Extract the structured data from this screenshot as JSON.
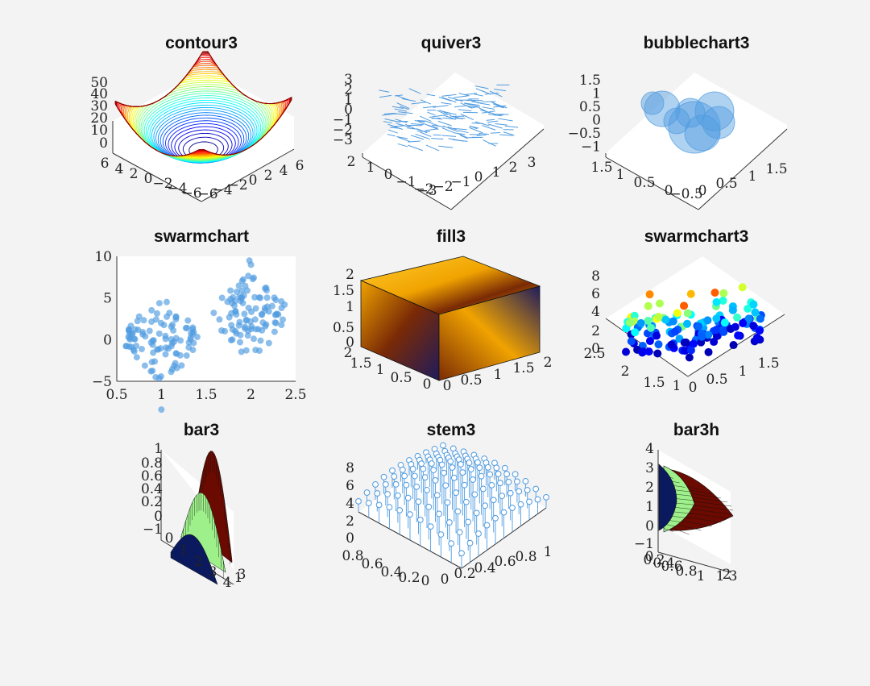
{
  "figure": {
    "background": "#f3f3f3",
    "panels": [
      {
        "id": "contour3",
        "title": "contour3"
      },
      {
        "id": "quiver3",
        "title": "quiver3"
      },
      {
        "id": "bubblechart3",
        "title": "bubblechart3"
      },
      {
        "id": "swarmchart",
        "title": "swarmchart"
      },
      {
        "id": "fill3",
        "title": "fill3"
      },
      {
        "id": "swarmchart3",
        "title": "swarmchart3"
      },
      {
        "id": "bar3",
        "title": "bar3"
      },
      {
        "id": "stem3",
        "title": "stem3"
      },
      {
        "id": "bar3h",
        "title": "bar3h"
      }
    ]
  },
  "chart_data": [
    {
      "type": "contour3",
      "title": "contour3",
      "function": "z = x^2 + y^2",
      "xlim": [
        -6,
        6
      ],
      "ylim": [
        -6,
        6
      ],
      "zlim": [
        0,
        50
      ],
      "xticks": [
        "−6",
        "−4",
        "−2",
        "0",
        "2",
        "4",
        "6"
      ],
      "yticks": [
        "6",
        "4",
        "2",
        "0",
        "−2",
        "−4",
        "−6"
      ],
      "zticks": [
        "50",
        "40",
        "30",
        "20",
        "10",
        "0"
      ],
      "colormap": "jet",
      "levels": 40
    },
    {
      "type": "quiver3",
      "title": "quiver3",
      "xlim": [
        -3,
        3
      ],
      "ylim": [
        -2,
        2
      ],
      "zlim": [
        -3,
        3
      ],
      "xticks": [
        "−3",
        "−2",
        "−1",
        "0",
        "1",
        "2",
        "3"
      ],
      "yticks": [
        "2",
        "1",
        "0",
        "−1",
        "−2"
      ],
      "zticks": [
        "3",
        "2",
        "1",
        "0",
        "−1",
        "−2",
        "−3"
      ],
      "color": "#4f9be0"
    },
    {
      "type": "bubblechart3",
      "title": "bubblechart3",
      "xlim": [
        -0.5,
        1.5
      ],
      "ylim": [
        -0.5,
        1.5
      ],
      "zlim": [
        -1,
        1.5
      ],
      "xticks": [
        "0",
        "0.5",
        "1",
        "1.5"
      ],
      "yticks": [
        "1.5",
        "1",
        "0.5",
        "0",
        "−0.5"
      ],
      "zticks": [
        "1.5",
        "1",
        "0.5",
        "0",
        "−0.5",
        "−1"
      ],
      "color": "#4f9be0",
      "bubbles": [
        [
          0.2,
          0.8,
          0.6,
          0.9
        ],
        [
          0.6,
          0.5,
          0.3,
          1.4
        ],
        [
          0.9,
          0.2,
          0.7,
          1.2
        ],
        [
          0.4,
          0.6,
          0.1,
          1.0
        ],
        [
          0.75,
          0.35,
          0.2,
          0.8
        ],
        [
          0.55,
          0.7,
          0.45,
          0.7
        ],
        [
          0.85,
          0.45,
          0.5,
          0.6
        ],
        [
          0.3,
          0.3,
          0.15,
          0.75
        ]
      ]
    },
    {
      "type": "scatter",
      "title": "swarmchart",
      "xlim": [
        0.5,
        2.5
      ],
      "ylim": [
        -5,
        10
      ],
      "xticks": [
        "0.5",
        "1",
        "1.5",
        "2",
        "2.5"
      ],
      "yticks": [
        "10",
        "5",
        "0",
        "−5"
      ],
      "color": "#4f9be0",
      "groups": [
        {
          "x": 1,
          "mean": 0,
          "sd": 2,
          "n": 100
        },
        {
          "x": 2,
          "mean": 3,
          "sd": 2,
          "n": 100
        }
      ]
    },
    {
      "type": "fill3",
      "title": "fill3",
      "xlim": [
        0,
        2
      ],
      "ylim": [
        0,
        2
      ],
      "zlim": [
        0,
        2
      ],
      "xticks": [
        "0",
        "0.5",
        "1",
        "1.5",
        "2"
      ],
      "yticks": [
        "2",
        "1.5",
        "1",
        "0.5",
        "0"
      ],
      "zticks": [
        "2",
        "1.5",
        "1",
        "0.5",
        "0"
      ],
      "colors": [
        "#1e1b5c",
        "#7a2a05",
        "#f0a300",
        "#ffcd30"
      ]
    },
    {
      "type": "scatter3",
      "title": "swarmchart3",
      "xlim": [
        -0.5,
        1.5
      ],
      "ylim": [
        0.5,
        2.5
      ],
      "zlim": [
        0,
        8
      ],
      "xticks": [
        "0",
        "0.5",
        "1",
        "1.5"
      ],
      "yticks": [
        "2.5",
        "2",
        "1.5",
        "1",
        "0.5"
      ],
      "zticks": [
        "8",
        "6",
        "4",
        "2",
        "0"
      ],
      "columns": [
        {
          "x": 0,
          "y": 1
        },
        {
          "x": 0.5,
          "y": 1.5
        },
        {
          "x": 1,
          "y": 2
        }
      ]
    },
    {
      "type": "bar3",
      "title": "bar3",
      "xlim": [
        0,
        4
      ],
      "zlim": [
        -1,
        1
      ],
      "xticks": [
        "0",
        "1",
        "2",
        "3",
        "4"
      ],
      "yticks": [
        "1",
        "2",
        "3"
      ],
      "zticks": [
        "1",
        "0.8",
        "0.6",
        "0.4",
        "0.2",
        "0",
        "−1"
      ],
      "series_colors": [
        "#0b1a5e",
        "#9ef08a",
        "#6b0a00"
      ]
    },
    {
      "type": "stem3",
      "title": "stem3",
      "grid": 11,
      "function": "z = 8*x*y",
      "xlim": [
        0,
        1
      ],
      "ylim": [
        0,
        1
      ],
      "zlim": [
        0,
        8
      ],
      "xticks": [
        "0",
        "0.2",
        "0.4",
        "0.6",
        "0.8",
        "1"
      ],
      "yticks": [
        "0.8",
        "0.6",
        "0.4",
        "0.2",
        "0"
      ],
      "zticks": [
        "8",
        "6",
        "4",
        "2",
        "0"
      ],
      "color": "#4f9be0"
    },
    {
      "type": "bar3h",
      "title": "bar3h",
      "zlim": [
        -1,
        4
      ],
      "zticks": [
        "4",
        "3",
        "2",
        "1",
        "0",
        "−1"
      ],
      "xticks": [
        "0",
        "0.2",
        "0.4",
        "0.6",
        "0.8",
        "1"
      ],
      "yticks": [
        "1",
        "2",
        "3"
      ],
      "series_colors": [
        "#0b1a5e",
        "#9ef08a",
        "#6b0a00"
      ]
    }
  ]
}
